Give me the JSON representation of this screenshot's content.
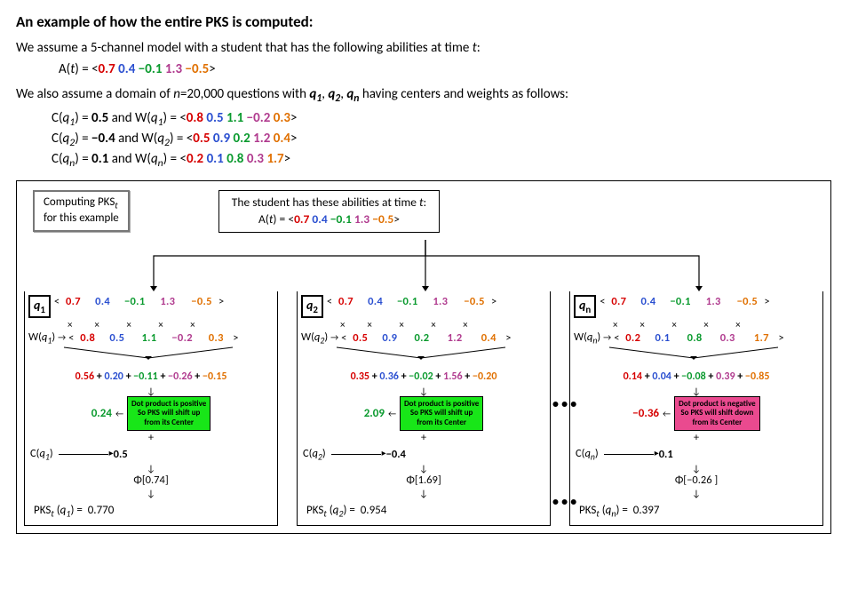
{
  "colors": {
    "c1": "#d60000",
    "c2": "#2a4fd0",
    "c3": "#0a9a2e",
    "c4": "#b03a8e",
    "c5": "#e07000",
    "noteGreen": "#18e618",
    "notePink": "#ea4a8f",
    "black": "#000000"
  },
  "title": "An example of how the entire PKS is computed:",
  "intro1": "We assume a 5-channel model with a student that has the following abilities at time ",
  "intro1_tail": ":",
  "t": "t",
  "A_eq_prefix": "A(",
  "A_eq_mid": ") = <",
  "A_vec": [
    "0.7",
    "0.4",
    "−0.1",
    "1.3",
    "−0.5"
  ],
  "A_eq_suffix": ">",
  "intro2_a": "We also assume a domain of ",
  "intro2_n": "n",
  "intro2_b": "=20,000 questions with ",
  "q1": "q",
  "q1s": "1",
  "q2": "q",
  "q2s": "2",
  "qn": "q",
  "qns": "n",
  "intro2_c": " having centers and weights as follows:",
  "defs": [
    {
      "C": "0.5",
      "W": [
        "0.8",
        "0.5",
        "1.1",
        "−0.2",
        "0.3"
      ],
      "qs": "1"
    },
    {
      "C": "−0.4",
      "W": [
        "0.5",
        "0.9",
        "0.2",
        "1.2",
        "0.4"
      ],
      "qs": "2"
    },
    {
      "C": "0.1",
      "W": [
        "0.2",
        "0.1",
        "0.8",
        "0.3",
        "1.7"
      ],
      "qs": "n"
    }
  ],
  "pksbox_l1": "Computing PKS",
  "pksbox_sub": "t",
  "pksbox_l2": "for this example",
  "abilbox_l1": "The student has these abilities at time ",
  "branches": [
    {
      "q": "q",
      "qs": "1",
      "W": [
        "0.8",
        "0.5",
        "1.1",
        "−0.2",
        "0.3"
      ],
      "terms": [
        "0.56",
        "0.20",
        "−0.11",
        "−0.26",
        "−0.15"
      ],
      "dp": "0.24",
      "dpColor": "#0a9a2e",
      "noteBg": "#18e618",
      "noteL1": "Dot product is positive",
      "noteL2": "So PKS will shift up",
      "noteL3": "from its Center",
      "C": "0.5",
      "phi": "Φ[0.74]",
      "pks": "0.770"
    },
    {
      "q": "q",
      "qs": "2",
      "W": [
        "0.5",
        "0.9",
        "0.2",
        "1.2",
        "0.4"
      ],
      "terms": [
        "0.35",
        "0.36",
        "−0.02",
        "1.56",
        "−0.20"
      ],
      "dp": "2.09",
      "dpColor": "#0a9a2e",
      "noteBg": "#18e618",
      "noteL1": "Dot product is positive",
      "noteL2": "So PKS will shift up",
      "noteL3": "from its Center",
      "C": "−0.4",
      "phi": "Φ[1.69]",
      "pks": "0.954"
    },
    {
      "q": "q",
      "qs": "n",
      "W": [
        "0.2",
        "0.1",
        "0.8",
        "0.3",
        "1.7"
      ],
      "terms": [
        "0.14",
        "0.04",
        "−0.08",
        "0.39",
        "−0.85"
      ],
      "dp": "−0.36",
      "dpColor": "#d60000",
      "noteBg": "#ea4a8f",
      "noteL1": "Dot product is negative",
      "noteL2": "So PKS will shift down",
      "noteL3": "from its Center",
      "C": "0.1",
      "phi": "Φ[−0.26 ]",
      "pks": "0.397"
    }
  ],
  "ellipsis": "• • •",
  "cw": [
    "30px",
    "30px",
    "36px",
    "32px",
    "38px"
  ]
}
